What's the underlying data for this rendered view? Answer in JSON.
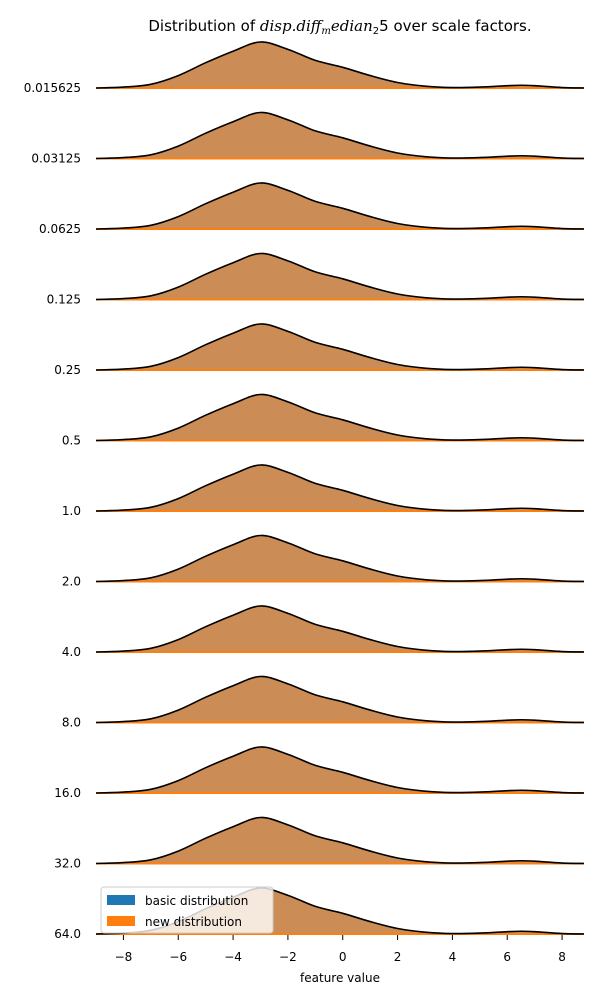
{
  "chart_data": {
    "type": "area",
    "title": {
      "prefix": "Distribution of ",
      "math_main": "disp.diff",
      "math_sub1": "m",
      "math_mid": "edian",
      "math_sub2": "2",
      "math_end": "5",
      "suffix": " over scale factors."
    },
    "xlabel": "feature value",
    "xlim": [
      -9.0,
      8.8
    ],
    "xticks": [
      -8,
      -6,
      -4,
      -2,
      0,
      2,
      4,
      6,
      8
    ],
    "xtick_labels": [
      "−8",
      "−6",
      "−4",
      "−2",
      "0",
      "2",
      "4",
      "6",
      "8"
    ],
    "categories": [
      "0.015625",
      "0.03125",
      "0.0625",
      "0.125",
      "0.25",
      "0.5",
      "1.0",
      "2.0",
      "4.0",
      "8.0",
      "16.0",
      "32.0",
      "64.0"
    ],
    "x": [
      -9,
      -8,
      -7,
      -6,
      -5,
      -4,
      -3,
      -2,
      -1,
      0,
      1,
      2,
      3,
      4,
      5,
      6,
      6.5,
      7,
      8,
      8.8
    ],
    "density": [
      0.0,
      0.02,
      0.08,
      0.27,
      0.55,
      0.8,
      1.0,
      0.84,
      0.6,
      0.45,
      0.27,
      0.12,
      0.04,
      0.01,
      0.02,
      0.05,
      0.06,
      0.05,
      0.01,
      0.0
    ],
    "series": [
      {
        "name": "basic distribution",
        "color": "#1f77b4"
      },
      {
        "name": "new distribution",
        "color": "#ff7f0e"
      }
    ],
    "fill_color": "#cb8c55",
    "legend_placement": "lower-left",
    "grid": false
  }
}
